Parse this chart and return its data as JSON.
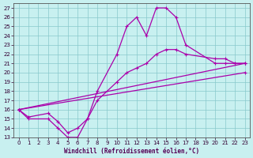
{
  "xlabel": "Windchill (Refroidissement éolien,°C)",
  "bg_color": "#c8f0f0",
  "line_color": "#aa00aa",
  "grid_color": "#88c8cc",
  "xlim": [
    -0.5,
    23.5
  ],
  "ylim": [
    13,
    27.5
  ],
  "xticks": [
    0,
    1,
    2,
    3,
    4,
    5,
    6,
    7,
    8,
    9,
    10,
    11,
    12,
    13,
    14,
    15,
    16,
    17,
    18,
    19,
    20,
    21,
    22,
    23
  ],
  "yticks": [
    13,
    14,
    15,
    16,
    17,
    18,
    19,
    20,
    21,
    22,
    23,
    24,
    25,
    26,
    27
  ],
  "line1_x": [
    0,
    1,
    3,
    4,
    5,
    6,
    7,
    8,
    10,
    11,
    12,
    13,
    14,
    15,
    16,
    17,
    20,
    21,
    22,
    23
  ],
  "line1_y": [
    16,
    15,
    15,
    14,
    13,
    13,
    15,
    18,
    22,
    25,
    26,
    24,
    27,
    27,
    26,
    23,
    21,
    21,
    21,
    21
  ],
  "line2_x": [
    0,
    1,
    3,
    4,
    5,
    6,
    7,
    8,
    10,
    11,
    12,
    13,
    14,
    15,
    16,
    17,
    20,
    21,
    22,
    23
  ],
  "line2_y": [
    16,
    15.2,
    15.6,
    14.7,
    13.5,
    14,
    15,
    17,
    19,
    20,
    20.5,
    21,
    22,
    22.5,
    22.5,
    22,
    21.5,
    21.5,
    21,
    21
  ],
  "line3_x": [
    0,
    23
  ],
  "line3_y": [
    16,
    21
  ],
  "line4_x": [
    0,
    23
  ],
  "line4_y": [
    16,
    20
  ]
}
